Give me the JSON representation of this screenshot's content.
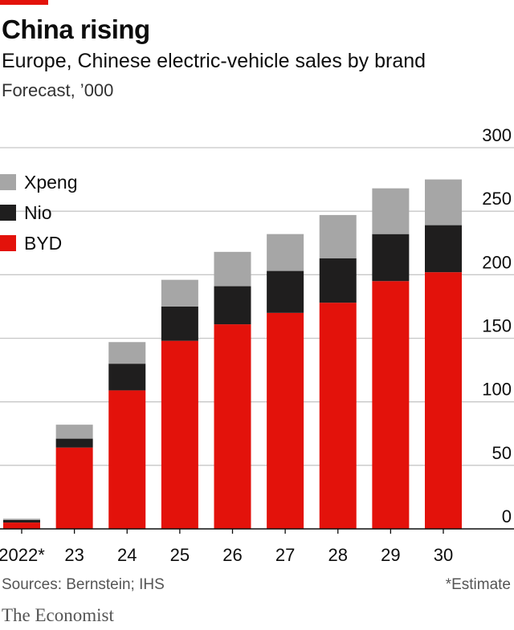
{
  "header": {
    "title": "China rising",
    "subtitle": "Europe, Chinese electric-vehicle sales by brand",
    "unit": "Forecast, ’000"
  },
  "footer": {
    "source": "Sources: Bernstein; IHS",
    "note": "*Estimate",
    "brand": "The Economist"
  },
  "legend": [
    {
      "label": "Xpeng",
      "color": "#a6a6a6"
    },
    {
      "label": "Nio",
      "color": "#1f1e1e"
    },
    {
      "label": "BYD",
      "color": "#e3120b"
    }
  ],
  "chart_data": {
    "type": "bar",
    "stacked": true,
    "categories": [
      "2022*",
      "23",
      "24",
      "25",
      "26",
      "27",
      "28",
      "29",
      "30"
    ],
    "series": [
      {
        "name": "BYD",
        "color": "#e3120b",
        "values": [
          5,
          64,
          109,
          148,
          161,
          170,
          178,
          195,
          202
        ]
      },
      {
        "name": "Nio",
        "color": "#1f1e1e",
        "values": [
          2,
          7,
          21,
          27,
          30,
          33,
          35,
          37,
          37
        ]
      },
      {
        "name": "Xpeng",
        "color": "#a6a6a6",
        "values": [
          1,
          11,
          17,
          21,
          27,
          29,
          34,
          36,
          36
        ]
      }
    ],
    "ylim": [
      0,
      300
    ],
    "yticks": [
      0,
      50,
      100,
      150,
      200,
      250,
      300
    ],
    "grid": true,
    "axis_side": "right",
    "legend_position": "top-left"
  }
}
